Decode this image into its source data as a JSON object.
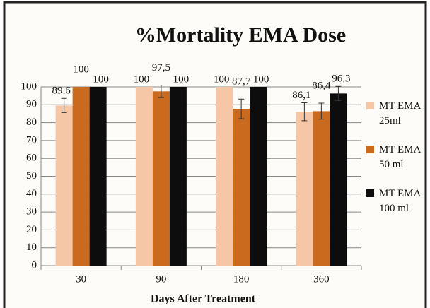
{
  "chart_data": {
    "type": "bar",
    "title": "%Mortality EMA Dose",
    "x_label": "Days After Treatment",
    "categories": [
      "30",
      "90",
      "180",
      "360"
    ],
    "series": [
      {
        "name": "MT EMA 25ml",
        "color": "#f6c7a6",
        "values": [
          89.6,
          100,
          100,
          86.1
        ],
        "value_labels": [
          "89,6",
          "100",
          "100",
          "86,1"
        ],
        "errors": [
          4,
          null,
          null,
          5
        ]
      },
      {
        "name": "MT EMA 50 ml",
        "color": "#c96a1e",
        "values": [
          100,
          97.5,
          87.7,
          86.4
        ],
        "value_labels": [
          "100",
          "97,5",
          "87,7",
          "86,4"
        ],
        "errors": [
          null,
          3.5,
          5.5,
          4.5
        ]
      },
      {
        "name": "MT EMA 100 ml",
        "color": "#0d0d0d",
        "values": [
          100,
          100,
          100,
          96.3
        ],
        "value_labels": [
          "100",
          "100",
          "100",
          "96,3"
        ],
        "errors": [
          null,
          null,
          null,
          4
        ]
      }
    ],
    "ylim": [
      0,
      100
    ],
    "yticks": [
      0,
      10,
      20,
      30,
      40,
      50,
      60,
      70,
      80,
      90,
      100
    ],
    "grid": true,
    "legend": "right"
  }
}
